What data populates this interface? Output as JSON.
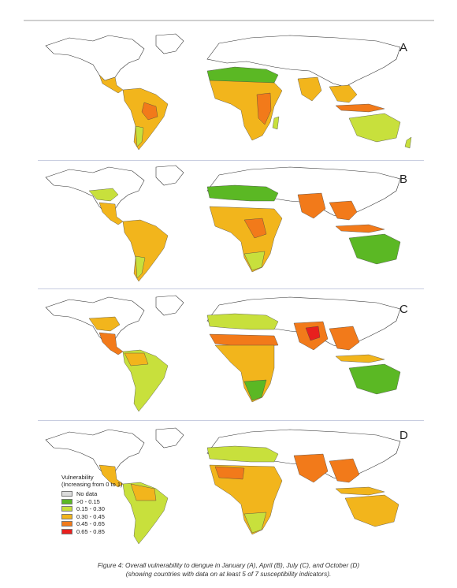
{
  "panels": [
    {
      "letter": "A",
      "month": "January"
    },
    {
      "letter": "B",
      "month": "April"
    },
    {
      "letter": "C",
      "month": "July"
    },
    {
      "letter": "D",
      "month": "October"
    }
  ],
  "legend": {
    "title_line1": "Vulnerability",
    "title_line2": "(Increasing from 0 to 1)",
    "items": [
      {
        "label": "No data",
        "color": "#dcdcdc"
      },
      {
        "label": ">0 - 0.15",
        "color": "#5bb824"
      },
      {
        "label": "0.15 - 0.30",
        "color": "#c8e03c"
      },
      {
        "label": "0.30 - 0.45",
        "color": "#f2b51c"
      },
      {
        "label": "0.45 - 0.65",
        "color": "#f27a1a"
      },
      {
        "label": "0.65 - 0.85",
        "color": "#e8201e"
      }
    ]
  },
  "caption": {
    "line1": "Figure 4: Overall vulnerability to dengue in January (A), April (B), July (C), and October (D)",
    "line2": "(showing countries with data on at least 5 of 7 susceptibility indicators)."
  }
}
